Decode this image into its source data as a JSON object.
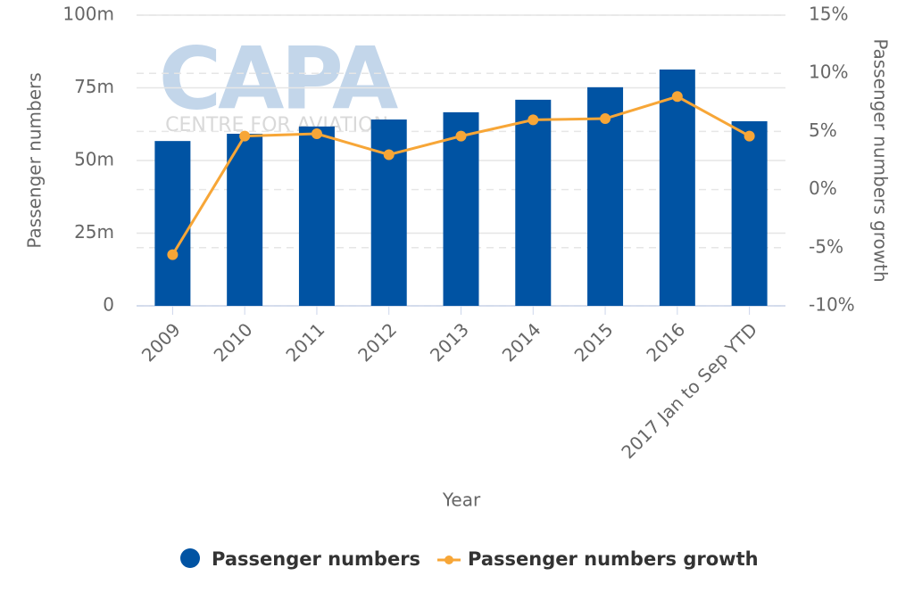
{
  "chart_data": {
    "type": "bar-line",
    "watermark": {
      "title": "CAPA",
      "subtitle": "CENTRE FOR AVIATION"
    },
    "x_label": "Year",
    "y_label": "Passenger numbers",
    "y2_label": "Passenger numbers growth",
    "categories": [
      "2009",
      "2010",
      "2011",
      "2012",
      "2013",
      "2014",
      "2015",
      "2016",
      "2017 Jan to Sep YTD"
    ],
    "series": [
      {
        "name": "Passenger numbers",
        "type": "bar",
        "color": "#0053a3",
        "values": [
          56.7,
          59.2,
          61.7,
          64.1,
          66.6,
          70.9,
          75.2,
          81.3,
          63.5
        ]
      },
      {
        "name": "Passenger numbers growth",
        "type": "line",
        "axis": "y2",
        "color": "#f7a637",
        "values": [
          -5.6,
          4.6,
          4.8,
          3.0,
          4.6,
          6.0,
          6.1,
          8.0,
          4.6
        ]
      }
    ],
    "ylim": [
      0,
      100
    ],
    "yticks": [
      0,
      {
        "value": 25,
        "label": "25m"
      },
      {
        "value": 50,
        "label": "50m"
      },
      {
        "value": 75,
        "label": "75m"
      },
      {
        "value": 100,
        "label": "100m"
      }
    ],
    "y2lim": [
      -10,
      15
    ],
    "y2ticks": [
      {
        "value": -10,
        "label": "-10%"
      },
      {
        "value": -5,
        "label": "-5%"
      },
      {
        "value": 0,
        "label": "0%"
      },
      {
        "value": 5,
        "label": "5%"
      },
      {
        "value": 10,
        "label": "10%"
      },
      {
        "value": 15,
        "label": "15%"
      }
    ],
    "grid": true,
    "legend": "bottom"
  }
}
